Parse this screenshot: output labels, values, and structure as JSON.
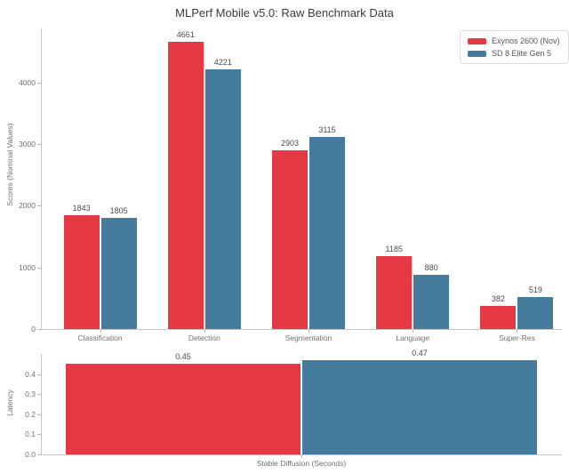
{
  "title": "MLPerf Mobile v5.0: Raw Benchmark Data",
  "colors": {
    "series_red": "#e63946",
    "series_blue": "#457b9d",
    "spine": "#c6c6c6",
    "tick_text": "#707070",
    "value_text": "#4a4a4a",
    "title_text": "#3b3b3b",
    "legend_border": "#dedede",
    "background": "#ffffff"
  },
  "legend": {
    "entries": [
      {
        "label": "Exynos 2600 (Nov)",
        "color": "#e63946"
      },
      {
        "label": "SD 8 Elite Gen 5",
        "color": "#457b9d"
      }
    ],
    "position": "upper right"
  },
  "chart_data": [
    {
      "type": "bar",
      "panel": "scores",
      "title": "MLPerf Mobile v5.0: Raw Benchmark Data",
      "xlabel": "",
      "ylabel": "Scores (Nominal Values)",
      "categories": [
        "Classification",
        "Detection",
        "Segmentation",
        "Language",
        "Super-Res"
      ],
      "series": [
        {
          "name": "Exynos 2600 (Nov)",
          "color": "#e63946",
          "values": [
            1843,
            4661,
            2903,
            1185,
            382
          ],
          "labels": [
            "1843",
            "4661",
            "2903",
            "1185",
            "382"
          ]
        },
        {
          "name": "SD 8 Elite Gen 5",
          "color": "#457b9d",
          "values": [
            1805,
            4221,
            3115,
            880,
            519
          ],
          "labels": [
            "1805",
            "4221",
            "3115",
            "880",
            "519"
          ]
        }
      ],
      "ylim": [
        0,
        4880
      ],
      "yticks": [
        0,
        1000,
        2000,
        3000,
        4000
      ],
      "ytick_labels": [
        "0",
        "1000",
        "2000",
        "3000",
        "4000"
      ],
      "grid": false,
      "legend_position": "upper right"
    },
    {
      "type": "bar",
      "panel": "latency",
      "title": "",
      "xlabel": "Stable Diffusion (Seconds)",
      "ylabel": "Latency",
      "categories": [
        "Stable Diffusion (Seconds)"
      ],
      "series": [
        {
          "name": "Exynos 2600 (Nov)",
          "color": "#e63946",
          "values": [
            0.45
          ],
          "labels": [
            "0.45"
          ]
        },
        {
          "name": "SD 8 Elite Gen 5",
          "color": "#457b9d",
          "values": [
            0.47
          ],
          "labels": [
            "0.47"
          ]
        }
      ],
      "ylim": [
        0,
        0.5
      ],
      "yticks": [
        0,
        0.1,
        0.2,
        0.3,
        0.4
      ],
      "ytick_labels": [
        "0.0",
        "0.1",
        "0.2",
        "0.3",
        "0.4"
      ],
      "grid": false
    }
  ]
}
